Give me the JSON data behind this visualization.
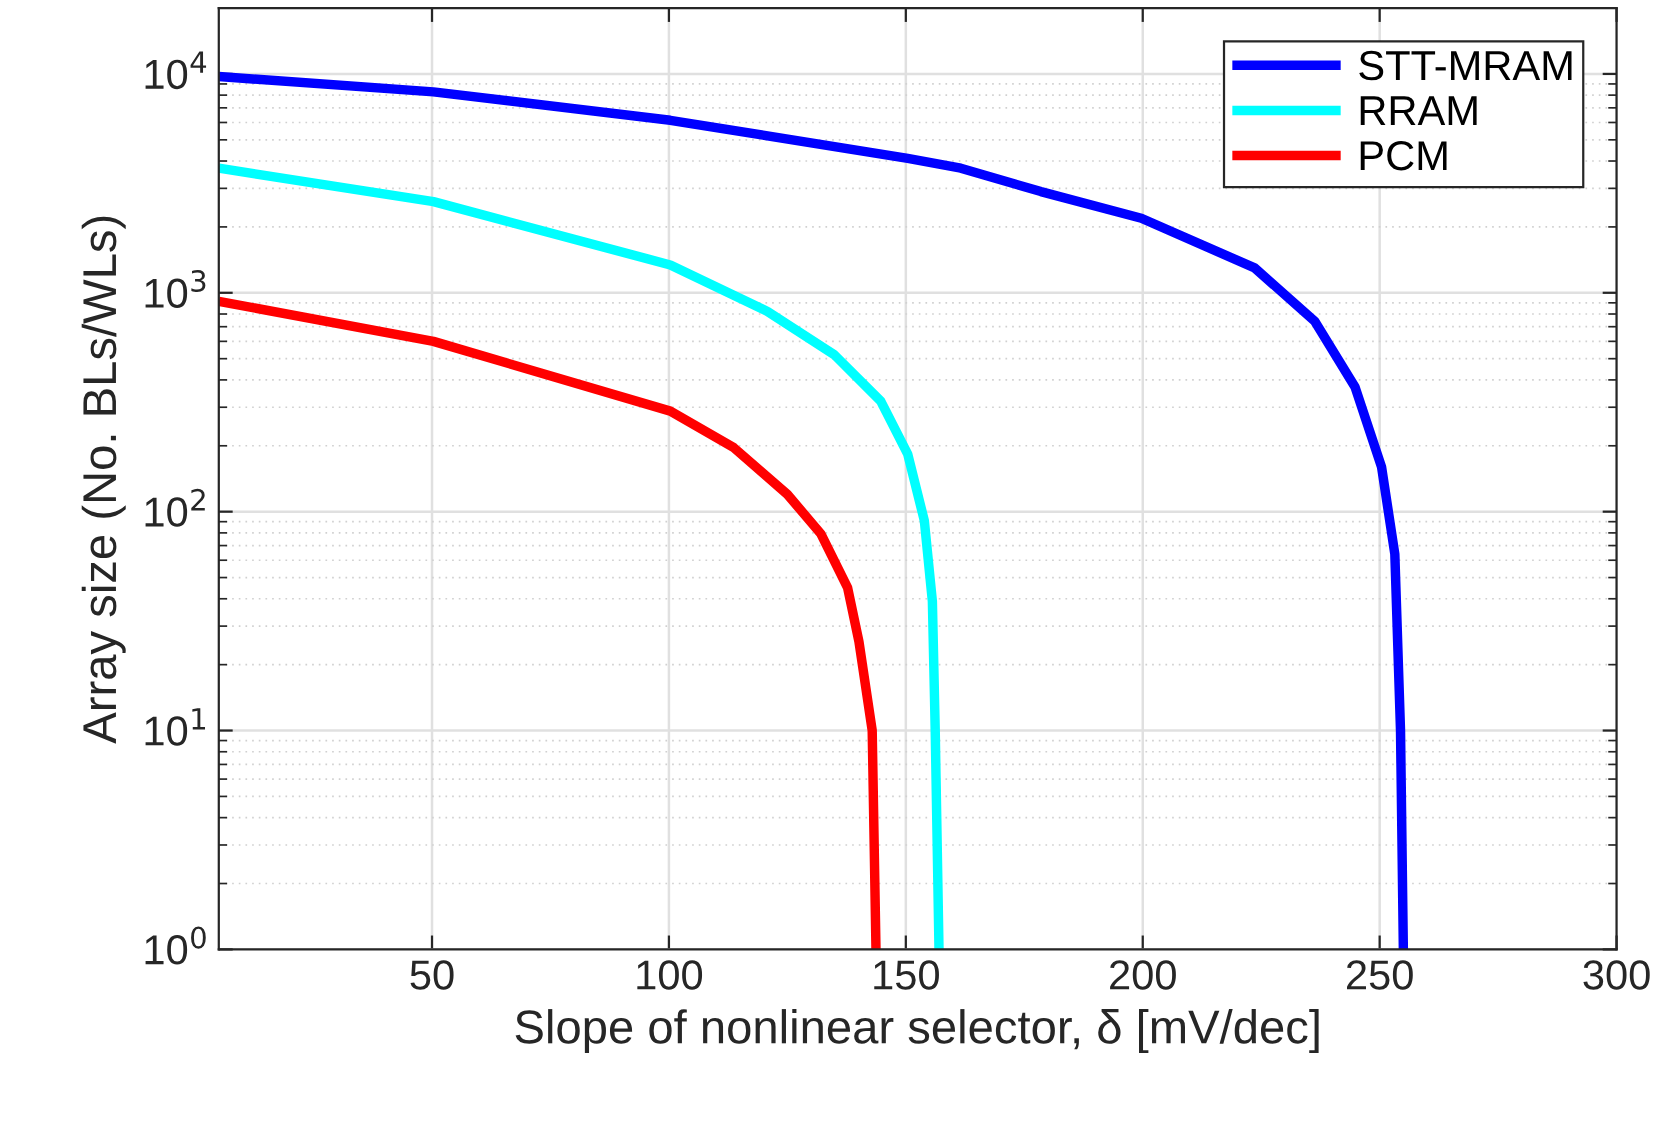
{
  "chart_data": {
    "type": "line",
    "xlabel": "Slope of nonlinear selector, δ [mV/dec]",
    "ylabel": "Array size (No. BLs/WLs)",
    "xlim": [
      5,
      300
    ],
    "xticks": [
      50,
      100,
      150,
      200,
      250,
      300
    ],
    "ylim": [
      1,
      20000
    ],
    "yticks": [
      {
        "value": 1,
        "label": "10$^{0}$"
      },
      {
        "value": 10,
        "label": "10$^{1}$"
      },
      {
        "value": 100,
        "label": "10$^{2}$"
      },
      {
        "value": 1000,
        "label": "10$^{3}$"
      },
      {
        "value": 10000,
        "label": "10$^{4}$"
      }
    ],
    "log": "y",
    "grid": true,
    "legend": "top right",
    "line_style": "solid",
    "marker": "none",
    "series": [
      {
        "name": "STT-MRAM",
        "color": "#0000ff",
        "x": [
          5,
          50.3,
          100.3,
          150.4,
          161.6,
          178.5,
          199.7,
          223.6,
          236.3,
          244.8,
          250.4,
          253.2,
          254.4,
          255
        ],
        "values": [
          9730,
          8280,
          6140,
          4110,
          3710,
          2900,
          2190,
          1300,
          741,
          371,
          160,
          64,
          10,
          1
        ]
      },
      {
        "name": "RRAM",
        "color": "#00ffff",
        "x": [
          5,
          50.3,
          100.3,
          120.8,
          134.9,
          144.7,
          150.4,
          153.9,
          155.6,
          156.2,
          157
        ],
        "values": [
          3710,
          2610,
          1340,
          822,
          521,
          320,
          183,
          91,
          39,
          10,
          1
        ]
      },
      {
        "name": "PCM",
        "color": "#ff0000",
        "x": [
          5,
          50.3,
          100.3,
          113.7,
          125,
          132.1,
          137.7,
          140.1,
          142.9,
          143.7
        ],
        "values": [
          914,
          600,
          288,
          196,
          120,
          79,
          45,
          25.5,
          10,
          1
        ]
      }
    ]
  }
}
